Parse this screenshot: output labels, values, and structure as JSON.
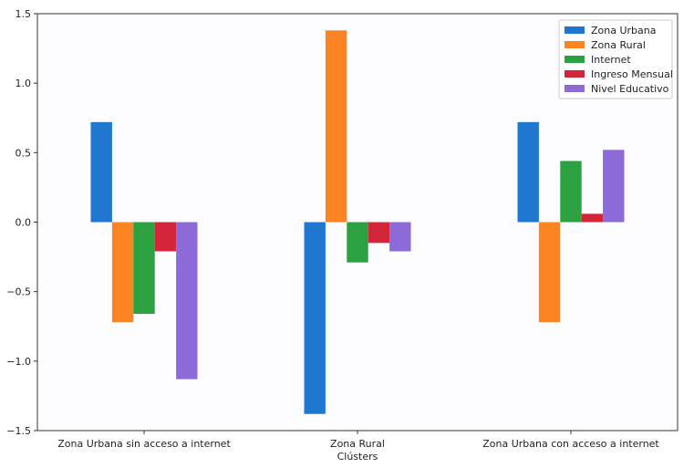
{
  "chart_data": {
    "type": "bar",
    "categories": [
      "Zona Urbana sin acceso a internet",
      "Zona Rural",
      "Zona Urbana con acceso a internet"
    ],
    "series": [
      {
        "name": "Zona Urbana",
        "color": "#1f77d0",
        "values": [
          0.72,
          -1.38,
          0.72
        ]
      },
      {
        "name": "Zona Rural",
        "color": "#fd8423",
        "values": [
          -0.72,
          1.38,
          -0.72
        ]
      },
      {
        "name": "Internet",
        "color": "#2ca13f",
        "values": [
          -0.66,
          -0.29,
          0.44
        ]
      },
      {
        "name": "Ingreso Mensual",
        "color": "#d3263a",
        "values": [
          -0.21,
          -0.15,
          0.06
        ]
      },
      {
        "name": "Nivel Educativo",
        "color": "#8c6bd8",
        "values": [
          -1.13,
          -0.21,
          0.52
        ]
      }
    ],
    "xlabel": "Clústers",
    "ylabel": "",
    "ylim": [
      -1.5,
      1.5
    ],
    "yticks": [
      "−1.5",
      "−1.0",
      "−0.5",
      "0.0",
      "0.5",
      "1.0",
      "1.5"
    ],
    "grid": false,
    "legend_position": "top-right"
  }
}
